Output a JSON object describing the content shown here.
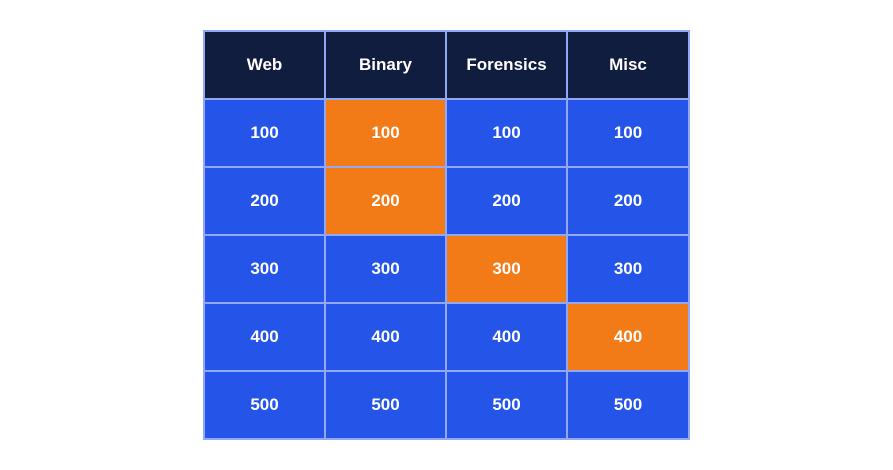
{
  "board": {
    "categories": [
      "Web",
      "Binary",
      "Forensics",
      "Misc"
    ],
    "rows": [
      [
        "100",
        "100",
        "100",
        "100"
      ],
      [
        "200",
        "200",
        "200",
        "200"
      ],
      [
        "300",
        "300",
        "300",
        "300"
      ],
      [
        "400",
        "400",
        "400",
        "400"
      ],
      [
        "500",
        "500",
        "500",
        "500"
      ]
    ],
    "selected": [
      [
        false,
        true,
        false,
        false
      ],
      [
        false,
        true,
        false,
        false
      ],
      [
        false,
        false,
        true,
        false
      ],
      [
        false,
        false,
        false,
        true
      ],
      [
        false,
        false,
        false,
        false
      ]
    ]
  },
  "colors": {
    "header": "#111d3f",
    "tile": "#2554e8",
    "tile_selected": "#f27a17",
    "grid_lines": "#93a7f7",
    "text": "#ffffff"
  }
}
